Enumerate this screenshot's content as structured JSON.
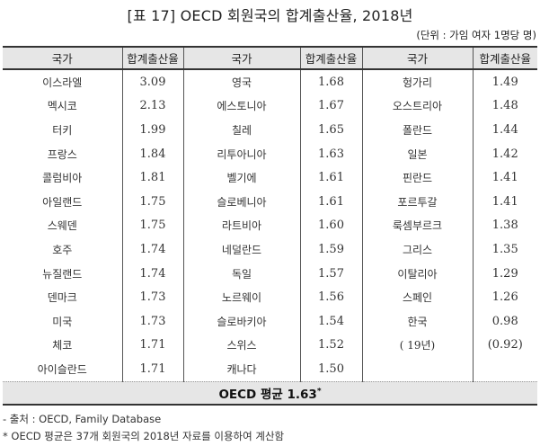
{
  "title": "[표 17] OECD 회원국의 합계출산율, 2018년",
  "unit": "(단위 : 가임 여자 1명당 명)",
  "table": {
    "headers": [
      "국가",
      "합계출산율",
      "국가",
      "합계출산율",
      "국가",
      "합계출산율"
    ],
    "rows": [
      [
        "이스라엘",
        "3.09",
        "영국",
        "1.68",
        "헝가리",
        "1.49"
      ],
      [
        "멕시코",
        "2.13",
        "에스토니아",
        "1.67",
        "오스트리아",
        "1.48"
      ],
      [
        "터키",
        "1.99",
        "칠레",
        "1.65",
        "폴란드",
        "1.44"
      ],
      [
        "프랑스",
        "1.84",
        "리투아니아",
        "1.63",
        "일본",
        "1.42"
      ],
      [
        "콜럼비아",
        "1.81",
        "벨기에",
        "1.61",
        "핀란드",
        "1.41"
      ],
      [
        "아일랜드",
        "1.75",
        "슬로베니아",
        "1.61",
        "포르투갈",
        "1.41"
      ],
      [
        "스웨덴",
        "1.75",
        "라트비아",
        "1.60",
        "룩셈부르크",
        "1.38"
      ],
      [
        "호주",
        "1.74",
        "네덜란드",
        "1.59",
        "그리스",
        "1.35"
      ],
      [
        "뉴질랜드",
        "1.74",
        "독일",
        "1.57",
        "이탈리아",
        "1.29"
      ],
      [
        "덴마크",
        "1.73",
        "노르웨이",
        "1.56",
        "스페인",
        "1.26"
      ],
      [
        "미국",
        "1.73",
        "슬로바키아",
        "1.54",
        "한국",
        "0.98"
      ],
      [
        "체코",
        "1.71",
        "스위스",
        "1.52",
        "( 19년)",
        "(0.92)"
      ],
      [
        "아이슬란드",
        "1.71",
        "캐나다",
        "1.50",
        "",
        ""
      ]
    ],
    "summary": "OECD 평균 1.63",
    "summary_mark": "*"
  },
  "notes": {
    "source": "- 출처 : OECD, Family Database",
    "footnote": "* OECD 평균은 37개 회원국의 2018년 자료를 이용하여 계산함"
  }
}
